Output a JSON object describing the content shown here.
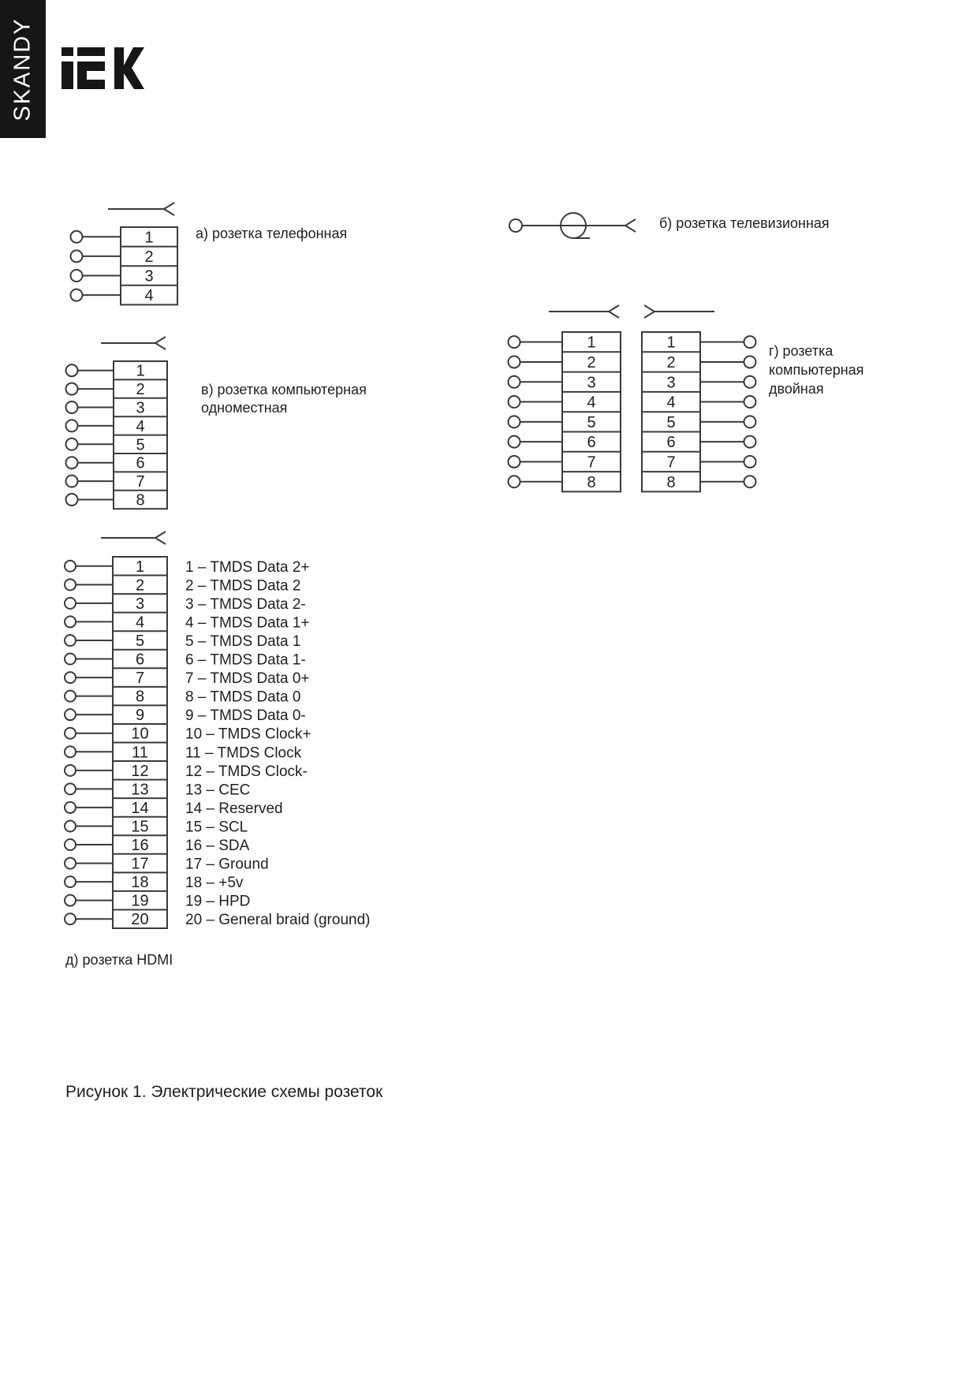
{
  "brand": {
    "vertical_text": "SKANDY",
    "logo_text": "IEK",
    "logo_icon": "iek-logo"
  },
  "colors": {
    "ink": "#1f1f1f",
    "line": "#3a3a3a",
    "sidebar_bg": "#161616",
    "sidebar_text": "#ffffff",
    "page_bg": "#ffffff"
  },
  "diagrams": {
    "telephone": {
      "label": "а) розетка телефонная",
      "pins": [
        "1",
        "2",
        "3",
        "4"
      ]
    },
    "tv": {
      "label": "б) розетка телевизионная"
    },
    "computer_single": {
      "label_lines": [
        "в) розетка компьютерная",
        "одноместная"
      ],
      "pins": [
        "1",
        "2",
        "3",
        "4",
        "5",
        "6",
        "7",
        "8"
      ]
    },
    "computer_double": {
      "label_lines": [
        "г) розетка",
        "компьютерная",
        "двойная"
      ],
      "left_pins": [
        "1",
        "2",
        "3",
        "4",
        "5",
        "6",
        "7",
        "8"
      ],
      "right_pins": [
        "1",
        "2",
        "3",
        "4",
        "5",
        "6",
        "7",
        "8"
      ]
    },
    "hdmi": {
      "label": "д) розетка HDMI",
      "pins": [
        "1",
        "2",
        "3",
        "4",
        "5",
        "6",
        "7",
        "8",
        "9",
        "10",
        "11",
        "12",
        "13",
        "14",
        "15",
        "16",
        "17",
        "18",
        "19",
        "20"
      ],
      "descriptions": [
        "1 – TMDS Data 2+",
        "2 – TMDS Data 2",
        "3 – TMDS Data 2-",
        "4 – TMDS Data 1+",
        "5 – TMDS Data 1",
        "6 – TMDS Data 1-",
        "7 – TMDS Data 0+",
        "8 – TMDS Data 0",
        "9 – TMDS Data 0-",
        "10 – TMDS Clock+",
        "11 – TMDS Clock",
        "12 – TMDS Clock-",
        "13 – CEC",
        "14 – Reserved",
        "15 – SCL",
        "16 – SDA",
        "17 – Ground",
        "18 – +5v",
        "19 – HPD",
        "20 – General braid (ground)"
      ]
    }
  },
  "figure": {
    "caption": "Рисунок 1. Электрические схемы розеток"
  }
}
